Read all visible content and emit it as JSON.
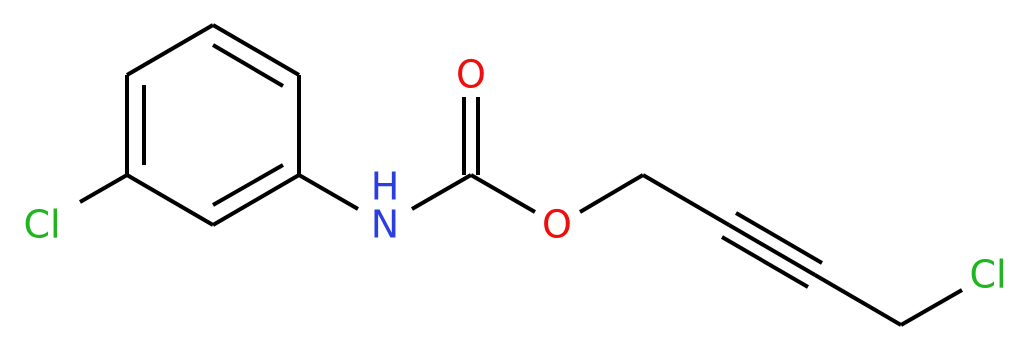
{
  "nodes": [
    {
      "label": "Cl"
    },
    {
      "label": "N"
    },
    {
      "label": "H"
    },
    {
      "label": "O"
    },
    {
      "label": "O"
    },
    {
      "label": "Cl"
    }
  ]
}
